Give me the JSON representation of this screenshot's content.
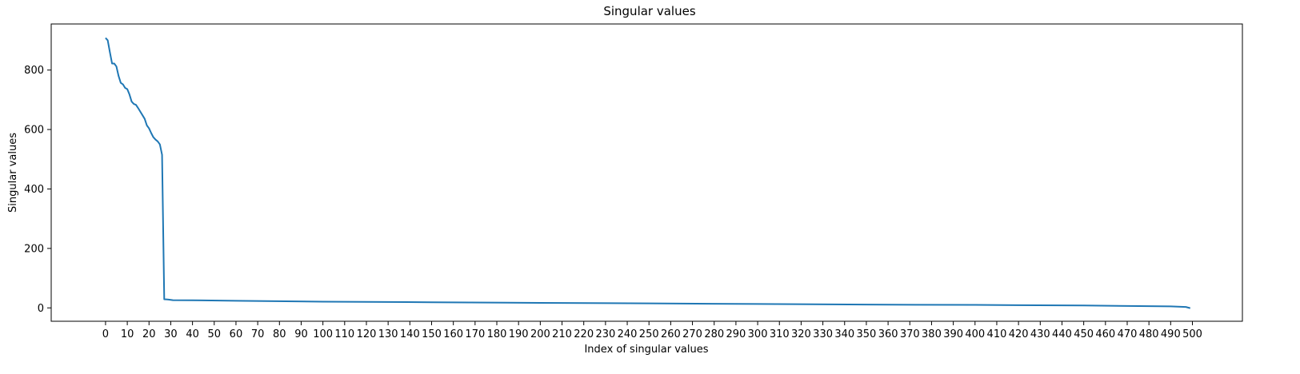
{
  "chart_data": {
    "type": "line",
    "title": "Singular values",
    "xlabel": "Index of singular values",
    "ylabel": "Singular values",
    "xlim": [
      -25,
      523
    ],
    "ylim": [
      -45,
      955
    ],
    "xticks": [
      0,
      10,
      20,
      30,
      40,
      50,
      60,
      70,
      80,
      90,
      100,
      110,
      120,
      130,
      140,
      150,
      160,
      170,
      180,
      190,
      200,
      210,
      220,
      230,
      240,
      250,
      260,
      270,
      280,
      290,
      300,
      310,
      320,
      330,
      340,
      350,
      360,
      370,
      380,
      390,
      400,
      410,
      420,
      430,
      440,
      450,
      460,
      470,
      480,
      490,
      500
    ],
    "yticks": [
      0,
      200,
      400,
      600,
      800
    ],
    "grid": false,
    "color": "#1f77b4",
    "series": [
      {
        "x": [
          0,
          1,
          2,
          3,
          4,
          5,
          6,
          7,
          8,
          9,
          10,
          11,
          12,
          13,
          14,
          15,
          16,
          17,
          18,
          19,
          20,
          21,
          22,
          23,
          24,
          25,
          26,
          27,
          28,
          29,
          30,
          31,
          40,
          60,
          100,
          150,
          200,
          250,
          300,
          350,
          400,
          450,
          490,
          497,
          499
        ],
        "values": [
          908,
          900,
          860,
          822,
          822,
          812,
          780,
          757,
          752,
          740,
          736,
          718,
          694,
          686,
          683,
          672,
          660,
          648,
          636,
          614,
          604,
          588,
          574,
          566,
          560,
          550,
          515,
          29,
          28.5,
          28,
          27,
          26,
          25.5,
          24,
          21,
          19,
          17,
          15,
          13,
          11,
          10,
          8,
          5,
          3,
          -1
        ]
      }
    ]
  }
}
